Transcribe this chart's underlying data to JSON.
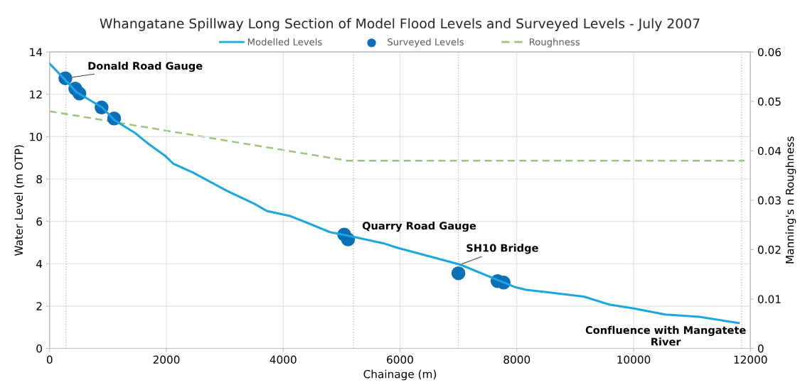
{
  "chart_data": {
    "type": "line",
    "title": "Whangatane Spillway Long Section of Model Flood Levels and Surveyed Levels - July 2007",
    "xlabel": "Chainage (m)",
    "ylabel": "Water Level (m OTP)",
    "y2label": "Manning's n Roughness",
    "xlim": [
      0,
      12000
    ],
    "xticks": [
      0,
      2000,
      4000,
      6000,
      8000,
      10000,
      12000
    ],
    "ylim": [
      0,
      14
    ],
    "yticks": [
      0,
      2,
      4,
      6,
      8,
      10,
      12,
      14
    ],
    "y2lim": [
      0,
      0.06
    ],
    "y2ticks": [
      0,
      0.01,
      0.02,
      0.03,
      0.04,
      0.05,
      0.06
    ],
    "grid": true,
    "legend": "top",
    "series": [
      {
        "name": "Modelled Levels",
        "color": "#1aa7e0",
        "marker": "none",
        "line_style": "solid",
        "x": [
          0,
          240,
          460,
          900,
          1115,
          1460,
          1680,
          1985,
          2115,
          2460,
          3030,
          3500,
          3720,
          4110,
          4460,
          4800,
          5240,
          5725,
          5930,
          7030,
          7975,
          8160,
          9145,
          9600,
          10005,
          10540,
          11125,
          11800
        ],
        "values": [
          13.45,
          12.76,
          12.1,
          11.38,
          10.77,
          10.18,
          9.69,
          9.08,
          8.73,
          8.3,
          7.45,
          6.84,
          6.49,
          6.26,
          5.88,
          5.49,
          5.25,
          4.96,
          4.77,
          3.96,
          2.89,
          2.77,
          2.45,
          2.06,
          1.89,
          1.6,
          1.49,
          1.2
        ]
      },
      {
        "name": "Surveyed Levels",
        "type": "scatter",
        "color": "#0b6fb8",
        "marker": "circle",
        "x": [
          270,
          440,
          510,
          890,
          1105,
          5045,
          5110,
          7000,
          7670,
          7775
        ],
        "values": [
          12.76,
          12.27,
          12.04,
          11.38,
          10.86,
          5.38,
          5.15,
          3.55,
          3.18,
          3.11
        ]
      },
      {
        "name": "Roughness",
        "axis": "y2",
        "color": "#9bc57a",
        "marker": "none",
        "line_style": "dashed",
        "x": [
          0,
          5100,
          11900
        ],
        "values": [
          0.048,
          0.038,
          0.038
        ]
      }
    ],
    "ref_lines": [
      {
        "axis": "x",
        "value": 280,
        "color": "#bfbfbf",
        "line_style": "dotted"
      },
      {
        "axis": "x",
        "value": 5200,
        "color": "#bfbfbf",
        "line_style": "dotted"
      },
      {
        "axis": "x",
        "value": 7000,
        "color": "#bfbfbf",
        "line_style": "dotted"
      },
      {
        "axis": "x",
        "value": 11850,
        "color": "#bfbfbf",
        "line_style": "dotted"
      },
      {
        "axis": "y",
        "value": 14,
        "color": "#f4b183",
        "line_style": "solid"
      }
    ],
    "annotations": [
      {
        "text": "Donald Road Gauge",
        "x": 270,
        "y": 12.76
      },
      {
        "text": "Quarry Road Gauge",
        "x": 5110,
        "y": 5.15
      },
      {
        "text": "SH10 Bridge",
        "x": 7030,
        "y": 3.96
      },
      {
        "text": "Confluence with Mangatete\nRiver",
        "x": 11800,
        "y": 1.2
      }
    ]
  }
}
